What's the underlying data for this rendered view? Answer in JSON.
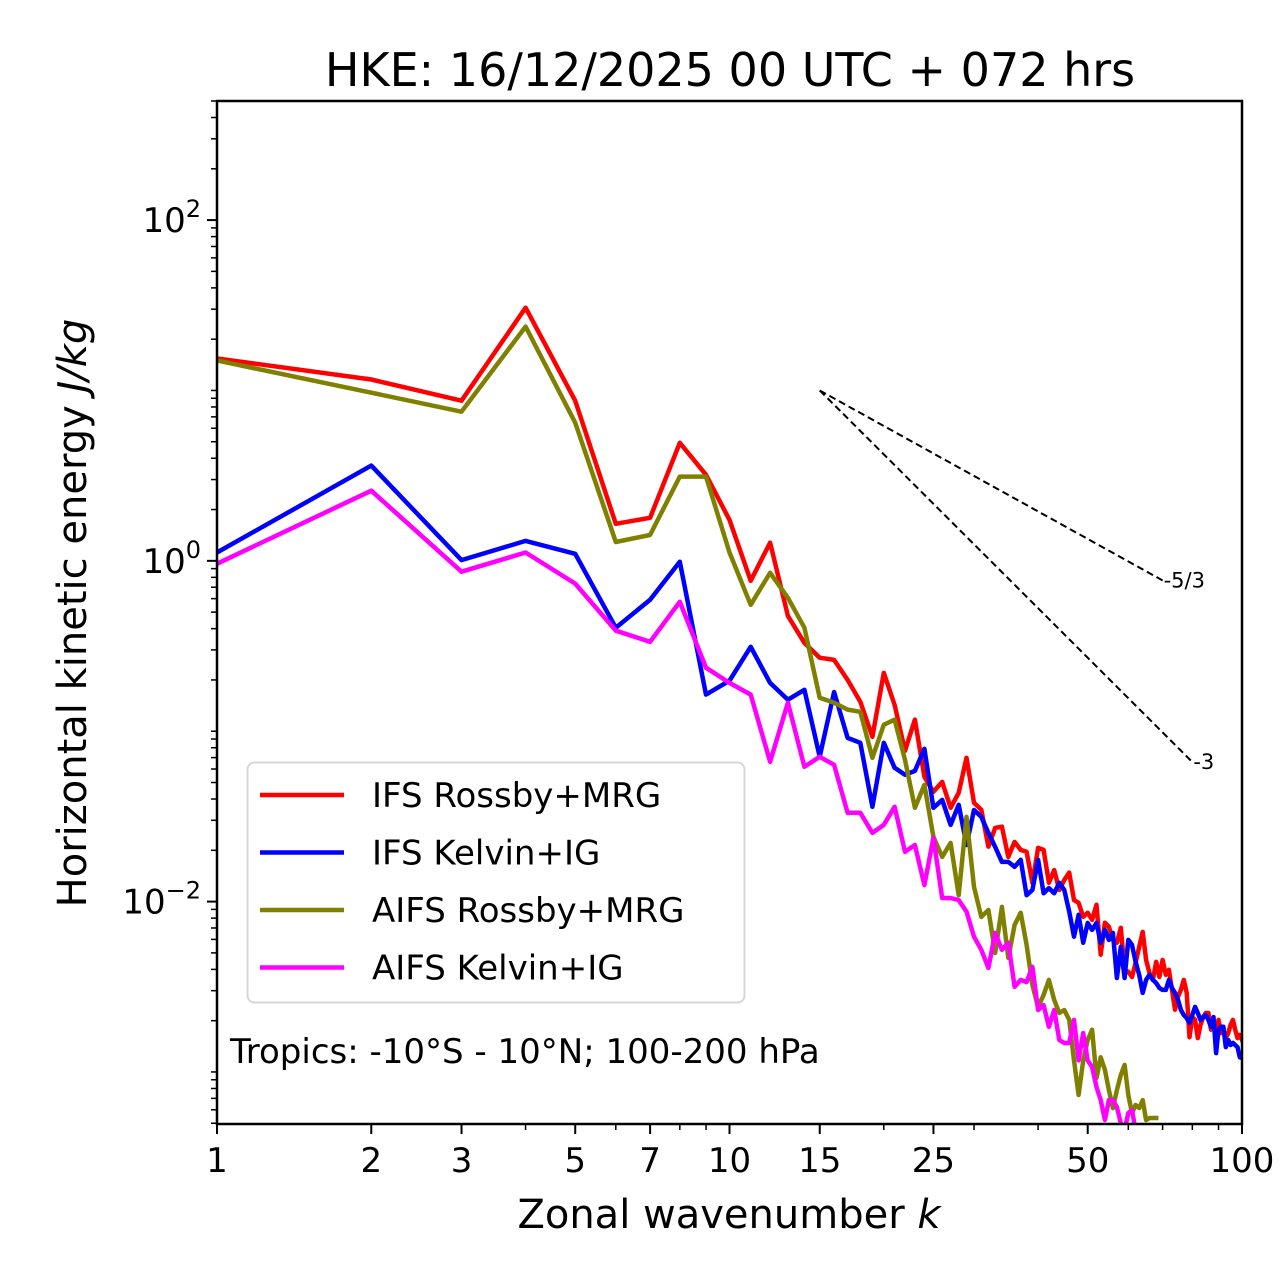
{
  "chart_data": {
    "type": "line",
    "title": "HKE: 16/12/2025 00 UTC + 072 hrs",
    "xlabel": "Zonal wavenumber",
    "xlabel_var": "k",
    "ylabel": "Horizontal kinetic energy",
    "ylabel_units": "J/kg",
    "xscale": "log",
    "yscale": "log",
    "xlim": [
      1,
      100
    ],
    "ylim": [
      0.000495,
      500
    ],
    "x_ticks": [
      1,
      2,
      3,
      5,
      7,
      10,
      15,
      25,
      50,
      100
    ],
    "x_tick_labels": [
      "1",
      "2",
      "3",
      "5",
      "7",
      "10",
      "15",
      "25",
      "50",
      "100"
    ],
    "x_minor_ticks": [
      4,
      6,
      8,
      9,
      20,
      30,
      40,
      60,
      70,
      80,
      90
    ],
    "y_ticks": [
      100,
      1,
      0.01
    ],
    "y_tick_labels": [
      {
        "base": "10",
        "exp": "2"
      },
      {
        "base": "10",
        "exp": "0"
      },
      {
        "base": "10",
        "exp": "−2"
      }
    ],
    "grid": false,
    "legend_position": "lower-left",
    "annotation": "Tropics: -10°S - 10°N; 100-200 hPa",
    "reference_slopes": [
      {
        "label": "-5/3",
        "slope": -1.6667,
        "k_start": 15,
        "e_start": 10,
        "k_end": 70
      },
      {
        "label": "-3",
        "slope": -3,
        "k_start": 15,
        "e_start": 10,
        "k_end": 80
      }
    ],
    "series": [
      {
        "name": "IFS Rossby+MRG",
        "color": "#ff0000",
        "k_start": 1,
        "values": [
          15.4,
          11.6,
          8.71,
          30.6,
          8.71,
          1.65,
          1.79,
          4.93,
          3.2,
          1.74,
          0.764,
          1.28,
          0.475,
          0.33,
          0.27,
          0.262,
          0.2,
          0.149,
          0.0927,
          0.22,
          0.143,
          0.0767,
          0.117,
          0.054,
          0.0441,
          0.0504,
          0.0355,
          0.0435,
          0.0698,
          0.038,
          0.0346,
          0.021,
          0.0271,
          0.0275,
          0.0183,
          0.0224,
          0.0201,
          0.0196,
          0.0129,
          0.0207,
          0.0201,
          0.0129,
          0.0153,
          0.0117,
          0.0134,
          0.0148,
          0.0102,
          0.00984,
          0.00814,
          0.00859,
          0.00782,
          0.00958,
          0.00488,
          0.00752,
          0.00711,
          0.00597,
          0.00573,
          0.00702,
          0.00398,
          0.00387,
          0.00361,
          0.00437,
          0.00542,
          0.00664,
          0.00455,
          0.00381,
          0.00347,
          0.00443,
          0.00361,
          0.00455,
          0.00372,
          0.00398,
          0.00303,
          0.00232,
          0.00276,
          0.00303,
          0.00347,
          0.00291,
          0.0016,
          0.0021,
          0.00202,
          0.00158,
          0.00189,
          0.0021,
          0.00222,
          0.00222,
          0.00177,
          0.00184,
          0.00165,
          0.00202,
          0.00169,
          0.00177,
          0.00158,
          0.00169,
          0.00189,
          0.00202,
          0.00177,
          0.00158,
          0.00165,
          0.00154
        ]
      },
      {
        "name": "IFS Kelvin+IG",
        "color": "#0000ff",
        "k_start": 1,
        "values": [
          1.12,
          3.62,
          1.01,
          1.31,
          1.1,
          0.405,
          0.591,
          0.989,
          0.164,
          0.198,
          0.313,
          0.192,
          0.153,
          0.175,
          0.0708,
          0.17,
          0.0914,
          0.0855,
          0.036,
          0.0855,
          0.061,
          0.0555,
          0.0585,
          0.0788,
          0.0355,
          0.0395,
          0.0282,
          0.037,
          0.0215,
          0.0345,
          0.0314,
          0.0253,
          0.0209,
          0.0171,
          0.0171,
          0.016,
          0.0176,
          0.0109,
          0.0117,
          0.0176,
          0.0112,
          0.012,
          0.0112,
          0.0129,
          0.0117,
          0.00873,
          0.00622,
          0.00836,
          0.00573,
          0.0075,
          0.00682,
          0.0075,
          0.00573,
          0.00682,
          0.00596,
          0.00655,
          0.00356,
          0.00542,
          0.00356,
          0.00596,
          0.00557,
          0.00443,
          0.00372,
          0.00291,
          0.00347,
          0.00372,
          0.00347,
          0.00333,
          0.00311,
          0.00303,
          0.00303,
          0.00347,
          0.00311,
          0.00291,
          0.00265,
          0.00231,
          0.00216,
          0.00207,
          0.00194,
          0.00216,
          0.00241,
          0.00222,
          0.00202,
          0.0021,
          0.00216,
          0.00202,
          0.00184,
          0.0021,
          0.00129,
          0.00177,
          0.00184,
          0.00184,
          0.0014,
          0.00154,
          0.00144,
          0.00148,
          0.00144,
          0.0014,
          0.00122,
          0.00121
        ]
      },
      {
        "name": "AIFS Rossby+MRG",
        "color": "#808000",
        "k_start": 1,
        "values": [
          15.0,
          9.7,
          7.51,
          23.7,
          6.47,
          1.29,
          1.42,
          3.12,
          3.12,
          1.12,
          0.552,
          0.851,
          0.607,
          0.405,
          0.157,
          0.147,
          0.134,
          0.13,
          0.0698,
          0.109,
          0.117,
          0.0679,
          0.0355,
          0.0484,
          0.024,
          0.0183,
          0.0221,
          0.0109,
          0.0314,
          0.0122,
          0.00813,
          0.00893,
          0.005,
          0.00931,
          0.00467,
          0.0073,
          0.00859,
          0.00557,
          0.00324,
          0.00241,
          0.00283,
          0.00347,
          0.00265,
          0.00222,
          0.00231,
          0.00202,
          0.00117,
          0.000733,
          0.00117,
          0.00154,
          0.00177,
          0.000923,
          0.00122,
          0.00103,
          0.000783,
          0.000614,
          0.000783,
          0.00096,
          0.0011,
          0.000733,
          0.000574,
          0.00064,
          0.000614,
          0.000684,
          0.000522,
          0.000537,
          0.000537,
          0.000537
        ]
      },
      {
        "name": "AIFS Kelvin+IG",
        "color": "#ff00ff",
        "k_start": 1,
        "values": [
          0.962,
          2.58,
          0.863,
          1.12,
          0.735,
          0.389,
          0.335,
          0.575,
          0.236,
          0.192,
          0.164,
          0.0661,
          0.147,
          0.0618,
          0.0708,
          0.0635,
          0.0332,
          0.0332,
          0.0253,
          0.0282,
          0.036,
          0.0196,
          0.0215,
          0.0125,
          0.0237,
          0.0105,
          0.0105,
          0.0102,
          0.00873,
          0.00622,
          0.00521,
          0.00408,
          0.00655,
          0.00521,
          0.00573,
          0.00316,
          0.00347,
          0.00337,
          0.00414,
          0.00231,
          0.00247,
          0.00184,
          0.00231,
          0.00154,
          0.00148,
          0.00148,
          0.00202,
          0.00117,
          0.00169,
          0.00117,
          0.00107,
          0.000816,
          0.000684,
          0.000522,
          0.000684,
          0.000684,
          0.000622,
          0.000501,
          0.000456,
          0.000574,
          0.000597,
          0.000456
        ]
      }
    ]
  }
}
